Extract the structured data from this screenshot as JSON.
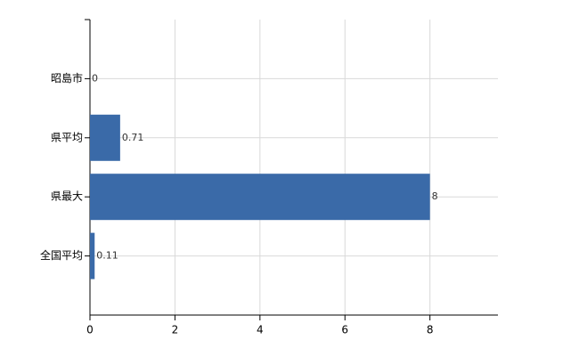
{
  "chart_data": {
    "type": "bar",
    "orientation": "horizontal",
    "categories": [
      "昭島市",
      "県平均",
      "県最大",
      "全国平均"
    ],
    "values": [
      0,
      0.71,
      8,
      0.11
    ],
    "color": "#3a6aa8",
    "xlim": [
      0,
      9.6
    ],
    "xticks": [
      0,
      2,
      4,
      6,
      8
    ],
    "grid": true
  }
}
